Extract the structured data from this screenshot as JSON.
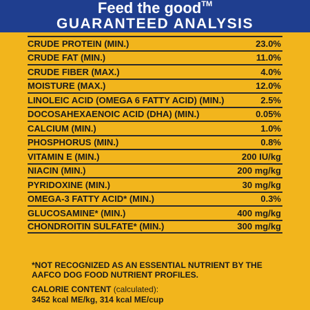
{
  "header": {
    "tagline": "Feed the good",
    "trademark": "TM",
    "title": "GUARANTEED ANALYSIS"
  },
  "analysis": [
    {
      "label": "CRUDE PROTEIN (MIN.)",
      "value": "23.0%"
    },
    {
      "label": "CRUDE FAT (MIN.)",
      "value": "11.0%"
    },
    {
      "label": "CRUDE FIBER (MAX.)",
      "value": "4.0%"
    },
    {
      "label": "MOISTURE (MAX.)",
      "value": "12.0%"
    },
    {
      "label": "LINOLEIC ACID (OMEGA 6 FATTY ACID) (MIN.)",
      "value": "2.5%"
    },
    {
      "label": "DOCOSAHEXAENOIC ACID (DHA) (MIN.)",
      "value": "0.05%"
    },
    {
      "label": "CALCIUM (MIN.)",
      "value": "1.0%"
    },
    {
      "label": "PHOSPHORUS (MIN.)",
      "value": "0.8%"
    },
    {
      "label": "VITAMIN E (MIN.)",
      "value": "200 IU/kg"
    },
    {
      "label": "NIACIN (MIN.)",
      "value": "200 mg/kg"
    },
    {
      "label": "PYRIDOXINE (MIN.)",
      "value": "30 mg/kg"
    },
    {
      "label": "OMEGA-3 FATTY ACID* (MIN.)",
      "value": "0.3%"
    },
    {
      "label": "GLUCOSAMINE* (MIN.)",
      "value": "400 mg/kg"
    },
    {
      "label": "CHONDROITIN SULFATE* (MIN.)",
      "value": "300 mg/kg"
    }
  ],
  "footnote": "*NOT RECOGNIZED AS AN ESSENTIAL NUTRIENT BY THE AAFCO DOG FOOD NUTRIENT PROFILES.",
  "calorie": {
    "title": "CALORIE CONTENT",
    "calculated": "(calculated):",
    "values": "3452 kcal ME/kg, 314 kcal ME/cup"
  },
  "colors": {
    "background": "#f2b51c",
    "header": "#1f3e8f",
    "text": "#1a1a1a"
  }
}
